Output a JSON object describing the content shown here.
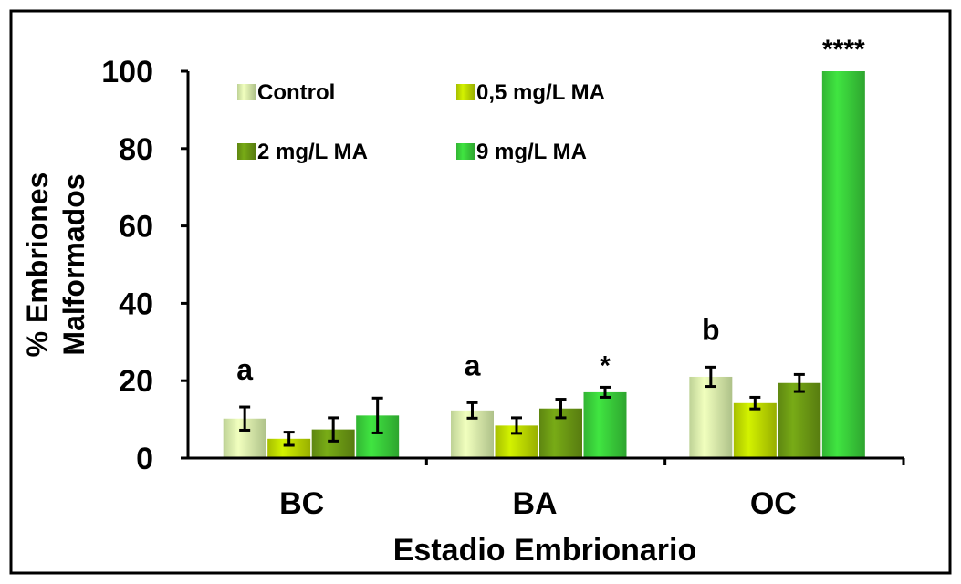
{
  "chart_data": {
    "type": "bar",
    "title": "",
    "xlabel": "Estadio Embrionario",
    "ylabel_lines": [
      "% Embriones",
      "Malformados"
    ],
    "ylim": [
      0,
      100
    ],
    "yticks": [
      "0",
      "20",
      "40",
      "60",
      "80",
      "100"
    ],
    "categories": [
      "BC",
      "BA",
      "OC"
    ],
    "series": [
      {
        "name": "Control",
        "color": "#dff7b0",
        "values": [
          10.2,
          12.3,
          21.0
        ],
        "errors": [
          3.0,
          2.0,
          2.5
        ]
      },
      {
        "name": "0,5 mg/L MA",
        "color": "#c3e000",
        "values": [
          5.0,
          8.4,
          14.2
        ],
        "errors": [
          1.7,
          2.0,
          1.5
        ]
      },
      {
        "name": "2 mg/L MA",
        "color": "#6f9e14",
        "values": [
          7.4,
          12.8,
          19.4
        ],
        "errors": [
          3.0,
          2.4,
          2.2
        ]
      },
      {
        "name": "9 mg/L MA",
        "color": "#3bd43c",
        "values": [
          11.0,
          17.0,
          100.0
        ],
        "errors": [
          4.5,
          1.3,
          0
        ]
      }
    ],
    "annotations": [
      {
        "category": "BC",
        "series": "Control",
        "text": "a"
      },
      {
        "category": "BA",
        "series": "Control",
        "text": "a"
      },
      {
        "category": "BA",
        "series": "9 mg/L MA",
        "text": "*"
      },
      {
        "category": "OC",
        "series": "Control",
        "text": "b"
      },
      {
        "category": "OC",
        "series": "9 mg/L MA",
        "text": "****"
      }
    ],
    "legend_position": "top-left inside plot",
    "grid": false
  }
}
